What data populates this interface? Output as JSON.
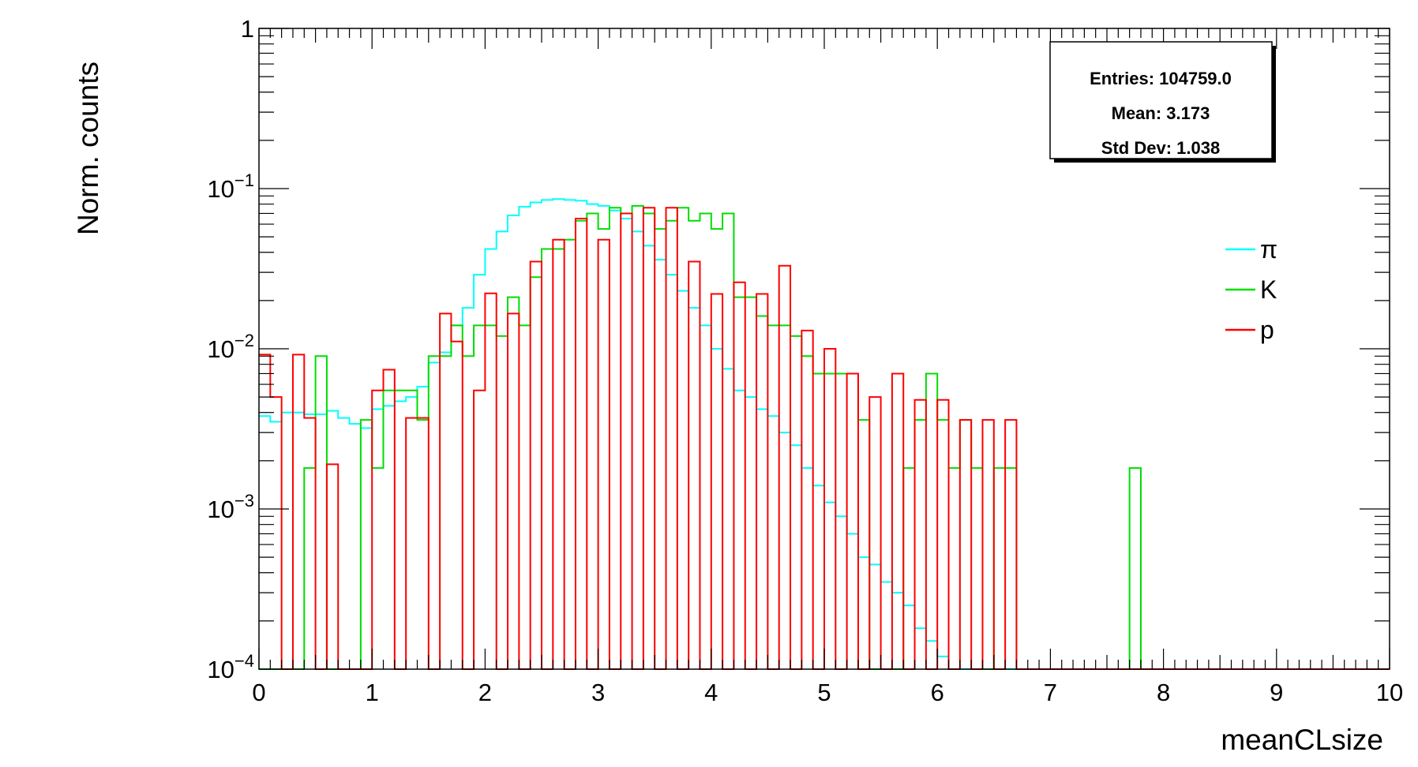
{
  "chart_data": {
    "type": "histogram",
    "xlabel": "meanCLsize",
    "ylabel": "Norm. counts",
    "xlim": [
      0,
      10
    ],
    "ylim": [
      0.0001,
      1
    ],
    "y_scale": "log",
    "bin_width": 0.1,
    "x_ticks": [
      "0",
      "1",
      "2",
      "3",
      "4",
      "5",
      "6",
      "7",
      "8",
      "9",
      "10"
    ],
    "y_ticks": [
      {
        "value": 1,
        "base": "1",
        "exp": ""
      },
      {
        "value": 0.1,
        "base": "10",
        "exp": "−1"
      },
      {
        "value": 0.01,
        "base": "10",
        "exp": "−2"
      },
      {
        "value": 0.001,
        "base": "10",
        "exp": "−3"
      },
      {
        "value": 0.0001,
        "base": "10",
        "exp": "−4"
      }
    ],
    "stats": {
      "entries": "Entries: 104759.0",
      "mean": "Mean: 3.173",
      "std_dev": "Std Dev: 1.038"
    },
    "legend_position": "right",
    "series": [
      {
        "name": "π",
        "color": "#00ffff",
        "values": [
          0.0038,
          0.0035,
          0.004,
          0.004,
          0.0039,
          0.0039,
          0.0041,
          0.0037,
          0.0034,
          0.0032,
          0.0042,
          0.0044,
          0.0047,
          0.005,
          0.0058,
          0.0082,
          0.0095,
          0.014,
          0.018,
          0.029,
          0.042,
          0.054,
          0.068,
          0.077,
          0.082,
          0.085,
          0.086,
          0.085,
          0.084,
          0.08,
          0.078,
          0.073,
          0.065,
          0.054,
          0.044,
          0.036,
          0.029,
          0.023,
          0.018,
          0.014,
          0.01,
          0.0075,
          0.0055,
          0.005,
          0.0042,
          0.0038,
          0.003,
          0.0025,
          0.0018,
          0.0014,
          0.0011,
          0.0009,
          0.0007,
          0.0005,
          0.00045,
          0.00035,
          0.0003,
          0.00025,
          0.00018,
          0.00015,
          0.00012,
          0.0001,
          0.0001,
          0.0001,
          0.0001,
          0.0001,
          0.0001,
          0.0001,
          0.0001,
          0.0001,
          0.0001,
          0.0001,
          0.0001,
          0.0001,
          0.0001,
          0.0001,
          0.0001,
          0.0001,
          0.0001,
          0.0001,
          0.0001,
          0.0001,
          0.0001,
          0.0001,
          0.0001,
          0.0001,
          0.0001,
          0.0001,
          0.0001,
          0.0001,
          0.0001,
          0.0001,
          0.0001,
          0.0001,
          0.0001,
          0.0001,
          0.0001,
          0.0001,
          0.0001,
          0.0001
        ]
      },
      {
        "name": "K",
        "color": "#00dd00",
        "values": [
          0.0001,
          0.0001,
          0.0001,
          0.0001,
          0.0018,
          0.009,
          0.0001,
          0.0001,
          0.0001,
          0.0036,
          0.0018,
          0.0055,
          0.0055,
          0.0055,
          0.0036,
          0.009,
          0.009,
          0.014,
          0.009,
          0.014,
          0.014,
          0.012,
          0.021,
          0.014,
          0.028,
          0.042,
          0.042,
          0.048,
          0.063,
          0.07,
          0.056,
          0.076,
          0.07,
          0.078,
          0.07,
          0.056,
          0.063,
          0.076,
          0.063,
          0.07,
          0.056,
          0.07,
          0.021,
          0.021,
          0.016,
          0.014,
          0.014,
          0.012,
          0.009,
          0.007,
          0.007,
          0.007,
          0.007,
          0.0036,
          0.0001,
          0.0001,
          0.0001,
          0.0018,
          0.0036,
          0.007,
          0.0036,
          0.0018,
          0.0036,
          0.0018,
          0.0001,
          0.0018,
          0.0018,
          0.0001,
          0.0001,
          0.0001,
          0.0001,
          0.0001,
          0.0001,
          0.0001,
          0.0001,
          0.0001,
          0.0001,
          0.0018,
          0.0001,
          0.0001,
          0.0001,
          0.0001,
          0.0001,
          0.0001,
          0.0001,
          0.0001,
          0.0001,
          0.0001,
          0.0001,
          0.0001,
          0.0001,
          0.0001,
          0.0001,
          0.0001,
          0.0001,
          0.0001,
          0.0001,
          0.0001,
          0.0001,
          0.0001
        ]
      },
      {
        "name": "p",
        "color": "#ff0000",
        "values": [
          0.0092,
          0.005,
          0.0001,
          0.0092,
          0.0037,
          0.0001,
          0.0019,
          0.0001,
          0.0001,
          0.0001,
          0.0055,
          0.0074,
          0.0001,
          0.0037,
          0.0037,
          0.0001,
          0.0166,
          0.0111,
          0.0001,
          0.0055,
          0.0222,
          0.0001,
          0.0166,
          0.0001,
          0.035,
          0.0001,
          0.048,
          0.0001,
          0.065,
          0.0001,
          0.048,
          0.0001,
          0.07,
          0.0001,
          0.076,
          0.0001,
          0.076,
          0.0001,
          0.035,
          0.0001,
          0.022,
          0.0001,
          0.026,
          0.0001,
          0.022,
          0.0001,
          0.033,
          0.0001,
          0.013,
          0.0001,
          0.01,
          0.0001,
          0.007,
          0.0001,
          0.005,
          0.0001,
          0.007,
          0.0001,
          0.0048,
          0.0001,
          0.0048,
          0.0001,
          0.0036,
          0.0001,
          0.0036,
          0.0001,
          0.0036,
          0.0001,
          0.0001,
          0.0001,
          0.0001,
          0.0001,
          0.0001,
          0.0001,
          0.0001,
          0.0001,
          0.0001,
          0.0001,
          0.0001,
          0.0001,
          0.0001,
          0.0001,
          0.0001,
          0.0001,
          0.0001,
          0.0001,
          0.0001,
          0.0001,
          0.0001,
          0.0001,
          0.0001,
          0.0001,
          0.0001,
          0.0001,
          0.0001,
          0.0001,
          0.0001,
          0.0001,
          0.0001,
          0.0001
        ]
      }
    ]
  }
}
